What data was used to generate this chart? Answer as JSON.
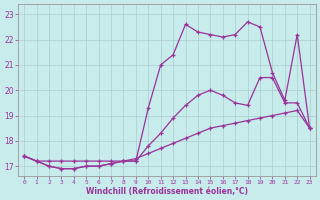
{
  "xlabel": "Windchill (Refroidissement éolien,°C)",
  "bg_color": "#c8ecec",
  "line_color": "#993399",
  "grid_color": "#aacccc",
  "axis_color": "#666666",
  "tick_color": "#993399",
  "xlabel_color": "#993399",
  "xlim": [
    -0.5,
    23.5
  ],
  "ylim": [
    16.6,
    23.4
  ],
  "xticks": [
    0,
    1,
    2,
    3,
    4,
    5,
    6,
    7,
    8,
    9,
    10,
    11,
    12,
    13,
    14,
    15,
    16,
    17,
    18,
    19,
    20,
    21,
    22,
    23
  ],
  "yticks": [
    17,
    18,
    19,
    20,
    21,
    22,
    23
  ],
  "line1_x": [
    0,
    1,
    2,
    3,
    4,
    5,
    6,
    7,
    8,
    9,
    10,
    11,
    12,
    13,
    14,
    15,
    16,
    17,
    18,
    19,
    20,
    21,
    22,
    23
  ],
  "line1_y": [
    17.4,
    17.2,
    17.2,
    17.2,
    17.2,
    17.2,
    17.2,
    17.2,
    17.2,
    17.3,
    17.5,
    17.7,
    17.9,
    18.1,
    18.3,
    18.5,
    18.6,
    18.7,
    18.8,
    18.9,
    19.0,
    19.1,
    19.2,
    18.5
  ],
  "line2_x": [
    0,
    1,
    2,
    3,
    4,
    5,
    6,
    7,
    8,
    9,
    10,
    11,
    12,
    13,
    14,
    15,
    16,
    17,
    18,
    19,
    20,
    21,
    22,
    23
  ],
  "line2_y": [
    17.4,
    17.2,
    17.0,
    16.9,
    16.9,
    17.0,
    17.0,
    17.1,
    17.2,
    17.2,
    17.8,
    18.3,
    18.9,
    19.4,
    19.8,
    20.0,
    19.8,
    19.5,
    19.4,
    20.5,
    20.5,
    19.5,
    19.5,
    18.5
  ],
  "line3_x": [
    0,
    1,
    2,
    3,
    4,
    5,
    6,
    7,
    8,
    9,
    10,
    11,
    12,
    13,
    14,
    15,
    16,
    17,
    18,
    19,
    20,
    21,
    22,
    23
  ],
  "line3_y": [
    17.4,
    17.2,
    17.0,
    16.9,
    16.9,
    17.0,
    17.0,
    17.1,
    17.2,
    17.2,
    19.3,
    21.0,
    21.4,
    22.6,
    22.3,
    22.2,
    22.1,
    22.2,
    22.7,
    22.5,
    20.7,
    19.6,
    22.2,
    18.5
  ]
}
